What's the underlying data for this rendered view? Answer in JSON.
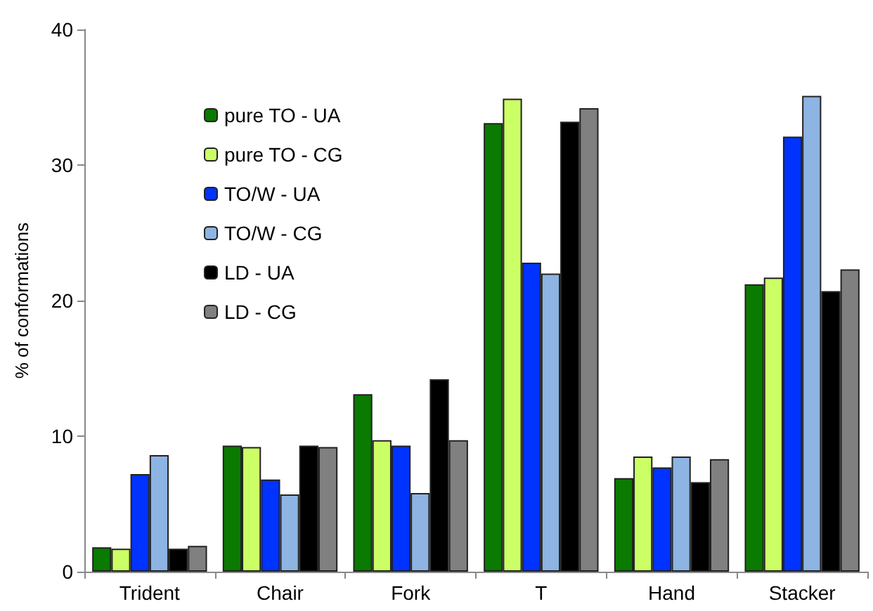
{
  "chart_data": {
    "type": "bar",
    "ylabel": "% of conformations",
    "categories": [
      "Trident",
      "Chair",
      "Fork",
      "T",
      "Hand",
      "Stacker"
    ],
    "series": [
      {
        "name": "pure TO - UA",
        "color": "#0a7a00",
        "values": [
          1.8,
          9.3,
          13.1,
          33.1,
          6.9,
          21.2
        ]
      },
      {
        "name": "pure TO - CG",
        "color": "#ccff66",
        "values": [
          1.7,
          9.2,
          9.7,
          34.9,
          8.5,
          21.7
        ]
      },
      {
        "name": "TO/W - UA",
        "color": "#0033ff",
        "values": [
          7.2,
          6.8,
          9.3,
          22.8,
          7.7,
          32.1
        ]
      },
      {
        "name": "TO/W - CG",
        "color": "#8db4e2",
        "values": [
          8.6,
          5.7,
          5.8,
          22.0,
          8.5,
          35.1
        ]
      },
      {
        "name": "LD - UA",
        "color": "#000000",
        "values": [
          1.7,
          9.3,
          14.2,
          33.2,
          6.6,
          20.7
        ]
      },
      {
        "name": "LD - CG",
        "color": "#808080",
        "values": [
          1.9,
          9.2,
          9.7,
          34.2,
          8.3,
          22.3
        ]
      }
    ],
    "ylim": [
      0,
      40
    ],
    "yticks": [
      0,
      10,
      20,
      30,
      40
    ],
    "grid": false,
    "legend": "top left"
  }
}
